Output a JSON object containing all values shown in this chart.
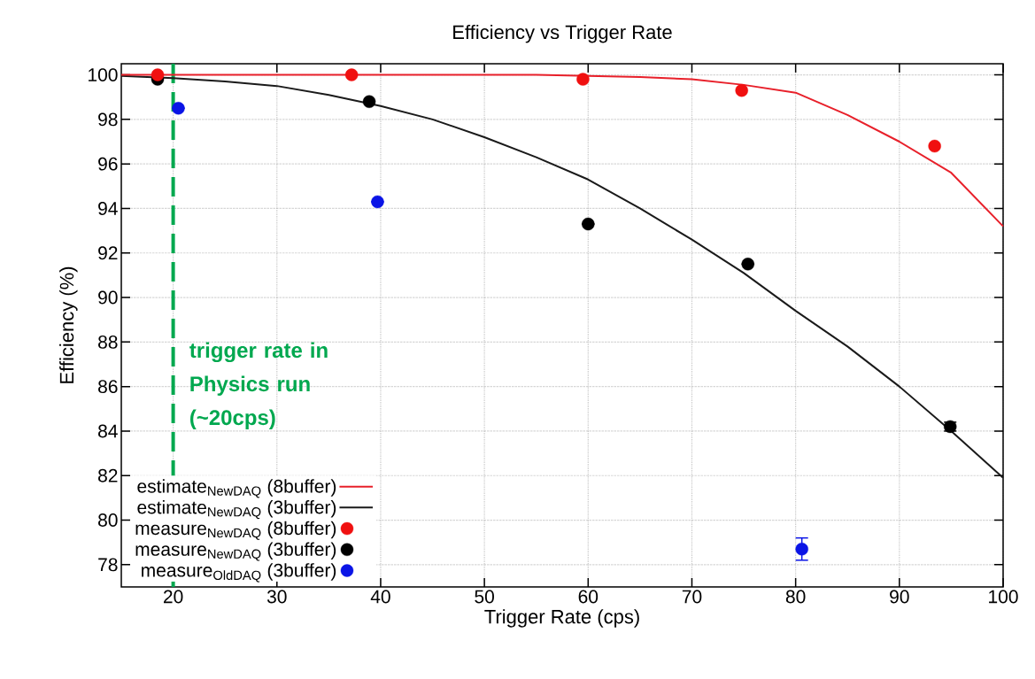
{
  "chart_data": {
    "type": "scatter",
    "title": "Efficiency vs Trigger Rate",
    "xlabel": "Trigger Rate (cps)",
    "ylabel": "Efficiency (%)",
    "xlim": [
      15,
      100
    ],
    "ylim": [
      77,
      100.5
    ],
    "xticks": [
      20,
      30,
      40,
      50,
      60,
      70,
      80,
      90,
      100
    ],
    "yticks": [
      78,
      80,
      82,
      84,
      86,
      88,
      90,
      92,
      94,
      96,
      98,
      100
    ],
    "grid": true,
    "legend": "bottom left",
    "series": [
      {
        "name": "estimate$_{NewDAQ}$ (8buffer)",
        "type": "line",
        "marker": "none",
        "color": "#e8202a",
        "x": [
          15,
          20,
          25,
          30,
          35,
          40,
          45,
          50,
          55,
          60,
          65,
          70,
          75,
          80,
          85,
          90,
          95,
          100
        ],
        "values": [
          100.0,
          100.0,
          100.0,
          100.0,
          100.0,
          100.0,
          100.0,
          100.0,
          100.0,
          99.95,
          99.9,
          99.8,
          99.55,
          99.2,
          98.2,
          97.0,
          95.6,
          93.2
        ]
      },
      {
        "name": "estimate$_{NewDAQ}$ (3buffer)",
        "type": "line",
        "marker": "none",
        "color": "#1a1a1a",
        "x": [
          15,
          20,
          25,
          30,
          35,
          40,
          45,
          50,
          55,
          60,
          65,
          70,
          75,
          80,
          85,
          90,
          95,
          100
        ],
        "values": [
          99.95,
          99.85,
          99.7,
          99.5,
          99.1,
          98.6,
          98.0,
          97.2,
          96.3,
          95.3,
          94.0,
          92.6,
          91.1,
          89.4,
          87.8,
          86.0,
          84.0,
          81.9
        ]
      },
      {
        "name": "measure$_{NewDAQ}$ (8buffer)",
        "type": "scatter",
        "marker": "circle",
        "color": "#f01010",
        "x": [
          18.5,
          37.2,
          59.5,
          74.8,
          93.4
        ],
        "values": [
          100.0,
          100.0,
          99.8,
          99.3,
          96.8
        ]
      },
      {
        "name": "measure$_{NewDAQ}$ (3buffer)",
        "type": "scatter",
        "marker": "circle",
        "color": "#000000",
        "x": [
          18.5,
          38.9,
          60.0,
          75.4,
          94.9
        ],
        "values": [
          99.8,
          98.8,
          93.3,
          91.5,
          84.2
        ],
        "errors": [
          null,
          null,
          null,
          null,
          0.2
        ]
      },
      {
        "name": "measure$_{OldDAQ}$ (3buffer)",
        "type": "scatter",
        "marker": "circle",
        "color": "#0a14e6",
        "x": [
          20.5,
          39.7,
          80.6
        ],
        "values": [
          98.5,
          94.3,
          78.7
        ],
        "errors": [
          null,
          null,
          0.5
        ]
      }
    ],
    "ref_lines": [
      {
        "axis": "x",
        "value": 20,
        "label": "trigger rate in Physics run (~20cps)",
        "color": "#00a84f",
        "line_style": "dashed"
      }
    ]
  }
}
